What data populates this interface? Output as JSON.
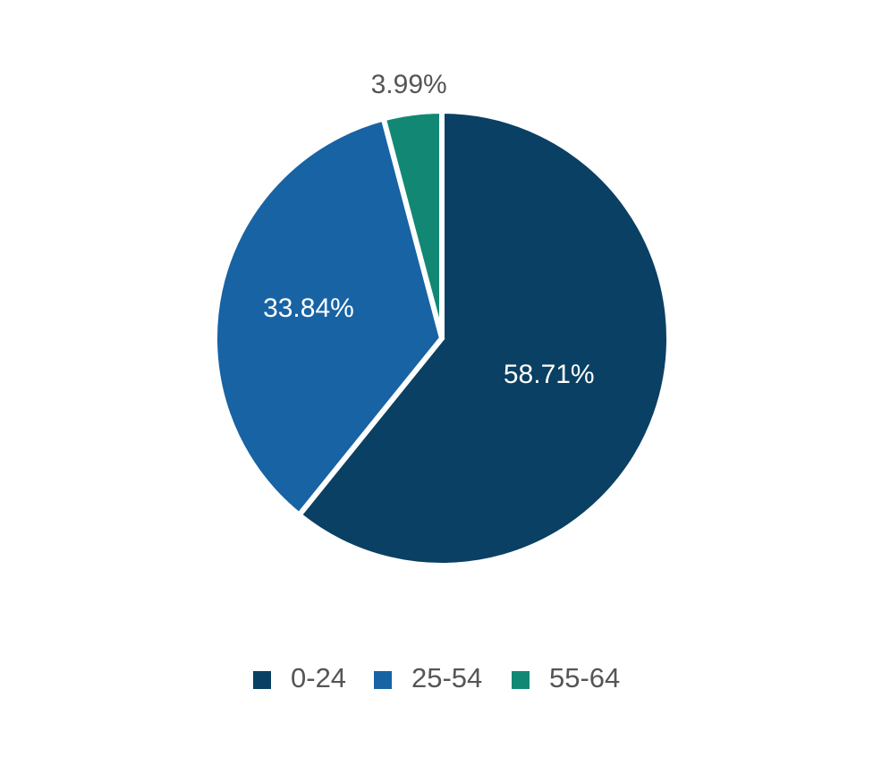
{
  "chart_data": {
    "type": "pie",
    "title": "",
    "categories": [
      "0-24",
      "25-54",
      "55-64"
    ],
    "values": [
      58.71,
      33.84,
      3.99
    ],
    "labels": [
      "58.71%",
      "33.84%",
      "3.99%"
    ],
    "colors": [
      "#0a4063",
      "#1763a4",
      "#128874"
    ],
    "start_angle": "12 o'clock",
    "direction": "clockwise",
    "legend": {
      "position": "bottom-center",
      "entries": [
        "0-24",
        "25-54",
        "55-64"
      ]
    }
  }
}
